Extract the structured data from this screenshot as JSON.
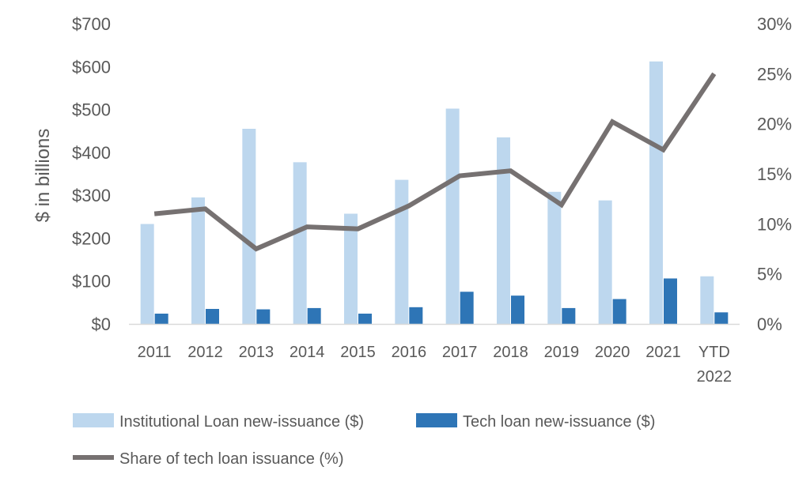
{
  "chart_data": {
    "type": "bar",
    "title": "",
    "categories": [
      "2011",
      "2012",
      "2013",
      "2014",
      "2015",
      "2016",
      "2017",
      "2018",
      "2019",
      "2020",
      "2021",
      "YTD 2022"
    ],
    "series": [
      {
        "name": "Institutional Loan new-issuance ($)",
        "type": "bar",
        "axis": "left",
        "color": "#bdd7ee",
        "values": [
          233,
          295,
          455,
          377,
          257,
          336,
          502,
          435,
          308,
          288,
          612,
          111
        ]
      },
      {
        "name": "Tech loan new-issuance ($)",
        "type": "bar",
        "axis": "left",
        "color": "#2e75b6",
        "values": [
          24,
          35,
          34,
          37,
          24,
          39,
          75,
          66,
          37,
          58,
          106,
          27
        ]
      },
      {
        "name": "Share of tech loan issuance (%)",
        "type": "line",
        "axis": "right",
        "color": "#767171",
        "values": [
          11.0,
          11.5,
          7.5,
          9.7,
          9.5,
          11.8,
          14.8,
          15.3,
          11.9,
          20.2,
          17.4,
          25.0
        ]
      }
    ],
    "ylabel": "$ in billions",
    "ylim": [
      0,
      700
    ],
    "yticks": [
      "$0",
      "$100",
      "$200",
      "$300",
      "$400",
      "$500",
      "$600",
      "$700"
    ],
    "y2lim": [
      0,
      30
    ],
    "y2ticks": [
      "0%",
      "5%",
      "10%",
      "15%",
      "20%",
      "25%",
      "30%"
    ],
    "grid": false,
    "legend_position": "bottom"
  }
}
